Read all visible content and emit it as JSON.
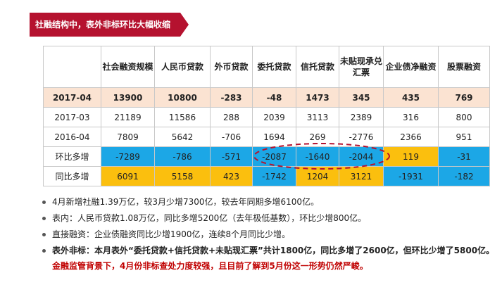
{
  "banner": {
    "title": "社融结构中，表外非标环比大幅收缩",
    "color": "#b5122f"
  },
  "table": {
    "headers": [
      "社会融资规模",
      "人民币贷款",
      "外币贷款",
      "委托贷款",
      "信托贷款",
      "未贴现承兑汇票",
      "企业债净融资",
      "股票融资"
    ],
    "rows": [
      {
        "label": "2017-04",
        "values": [
          "13900",
          "10800",
          "-283",
          "-48",
          "1473",
          "345",
          "435",
          "769"
        ]
      },
      {
        "label": "2017-03",
        "values": [
          "21189",
          "11586",
          "288",
          "2039",
          "3113",
          "2389",
          "316",
          "800"
        ]
      },
      {
        "label": "2016-04",
        "values": [
          "7809",
          "5642",
          "-706",
          "1694",
          "269",
          "-2776",
          "2366",
          "951"
        ]
      },
      {
        "label": "环比多增",
        "values": [
          "-7289",
          "-786",
          "-571",
          "-2087",
          "-1640",
          "-2044",
          "119",
          "-31"
        ]
      },
      {
        "label": "同比多增",
        "values": [
          "6091",
          "5158",
          "423",
          "-1742",
          "1204",
          "3121",
          "-1931",
          "-182"
        ]
      }
    ]
  },
  "colors": {
    "highlight_row": "#fbe3d2",
    "blue": "#1ca7e6",
    "yellow": "#fbbf0e",
    "oval": "#b5122f"
  },
  "bullets": [
    "4月新增社融1.39万亿，较3月少增7300亿，较去年同期多增6100亿。",
    "表内：人民币贷款1.08万亿，同比多增5200亿（去年极低基数），环比少增800亿。",
    "直接融资：企业债融资同比少增1900亿，连续8个月同比少增。"
  ],
  "bullet4": {
    "part1": "表外非标：本月表外“委托贷款+信托贷款+未贴现汇票”共计1800亿，同比多增了2600亿，但环比少增了5800亿。",
    "part2": "金融监管背景下，4月份非标查处力度较强，且目前了解到5月份这一形势仍然严峻。"
  }
}
